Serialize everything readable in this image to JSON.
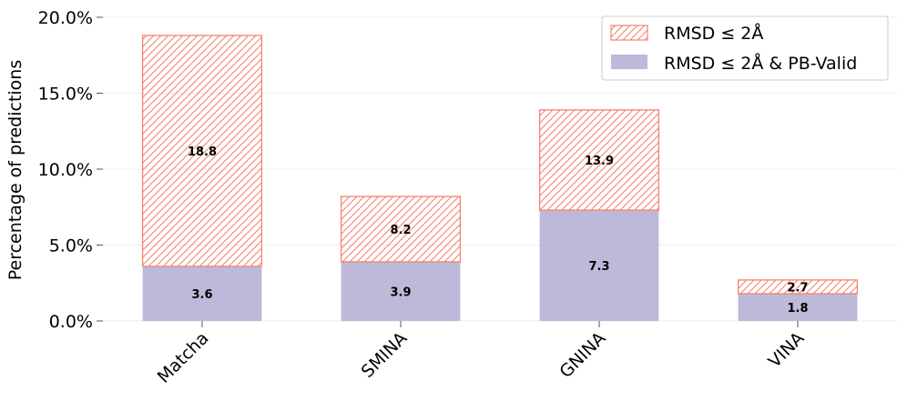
{
  "chart_data": {
    "type": "bar",
    "stacked_overlay": true,
    "categories": [
      "Matcha",
      "SMINA",
      "GNINA",
      "VINA"
    ],
    "series": [
      {
        "name": "RMSD ≤ 2Å",
        "values": [
          18.8,
          8.2,
          13.9,
          2.7
        ],
        "labels": [
          "18.8",
          "8.2",
          "13.9",
          "2.7"
        ],
        "style": "hatched",
        "color": "#f4826e"
      },
      {
        "name": "RMSD ≤ 2Å & PB-Valid",
        "values": [
          3.6,
          3.9,
          7.3,
          1.8
        ],
        "labels": [
          "3.6",
          "3.9",
          "7.3",
          "1.8"
        ],
        "style": "filled",
        "color": "#bcb9d9"
      }
    ],
    "ylabel": "Percentage of predictions",
    "xlabel": "",
    "ylim": [
      0,
      20
    ],
    "yticks": [
      "0.0%",
      "5.0%",
      "10.0%",
      "15.0%",
      "20.0%"
    ],
    "ytick_values": [
      0,
      5,
      10,
      15,
      20
    ],
    "grid": true,
    "legend_position": "top-right"
  }
}
